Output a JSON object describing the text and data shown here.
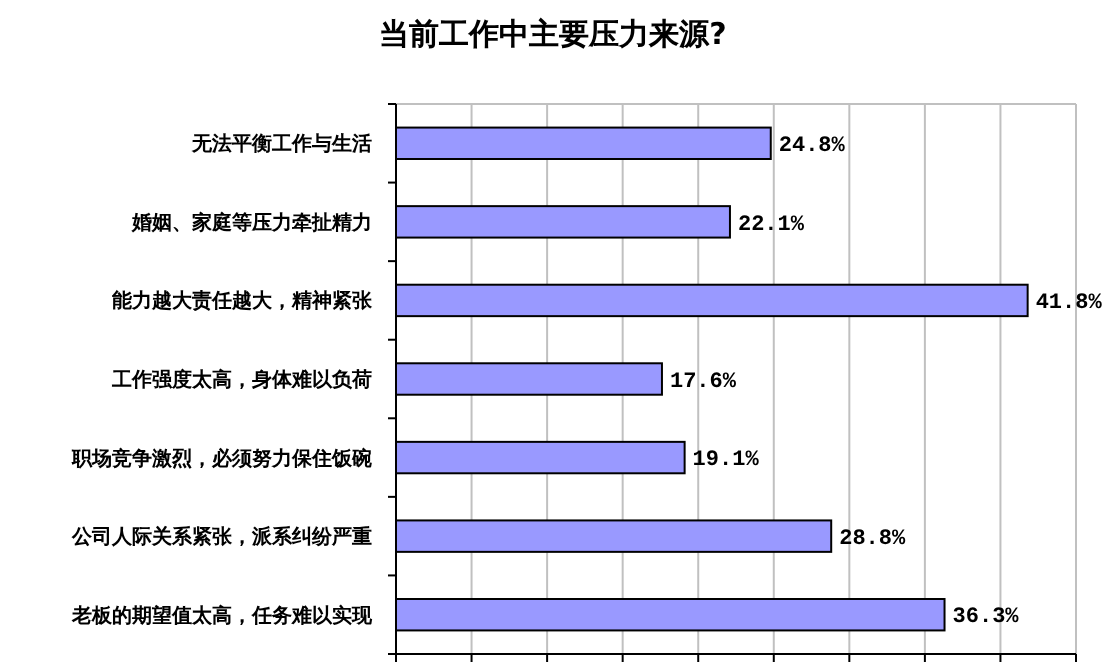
{
  "chart_data": {
    "type": "bar",
    "orientation": "horizontal",
    "title": "当前工作中主要压力来源?",
    "categories": [
      "无法平衡工作与生活",
      "婚姻、家庭等压力牵扯精力",
      "能力越大责任越大，精神紧张",
      "工作强度太高，身体难以负荷",
      "职场竞争激烈，必须努力保住饭碗",
      "公司人际关系紧张，派系纠纷严重",
      "老板的期望值太高，任务难以实现"
    ],
    "values": [
      24.8,
      22.1,
      41.8,
      17.6,
      19.1,
      28.8,
      36.3
    ],
    "value_labels": [
      "24.8%",
      "22.1%",
      "41.8%",
      "17.6%",
      "19.1%",
      "28.8%",
      "36.3%"
    ],
    "color": "#9999ff",
    "xlim": [
      0,
      45
    ],
    "xticks": [
      {
        "value": 0,
        "label": null
      },
      {
        "value": 5,
        "label": null
      },
      {
        "value": 10,
        "label": null
      },
      {
        "value": 15,
        "label": null
      },
      {
        "value": 20,
        "label": null
      },
      {
        "value": 25,
        "label": null
      },
      {
        "value": 30,
        "label": null
      },
      {
        "value": 35,
        "label": null
      },
      {
        "value": 40,
        "label": null
      },
      {
        "value": 45,
        "label": null
      }
    ],
    "tick_labels": "y",
    "grid": "x"
  }
}
